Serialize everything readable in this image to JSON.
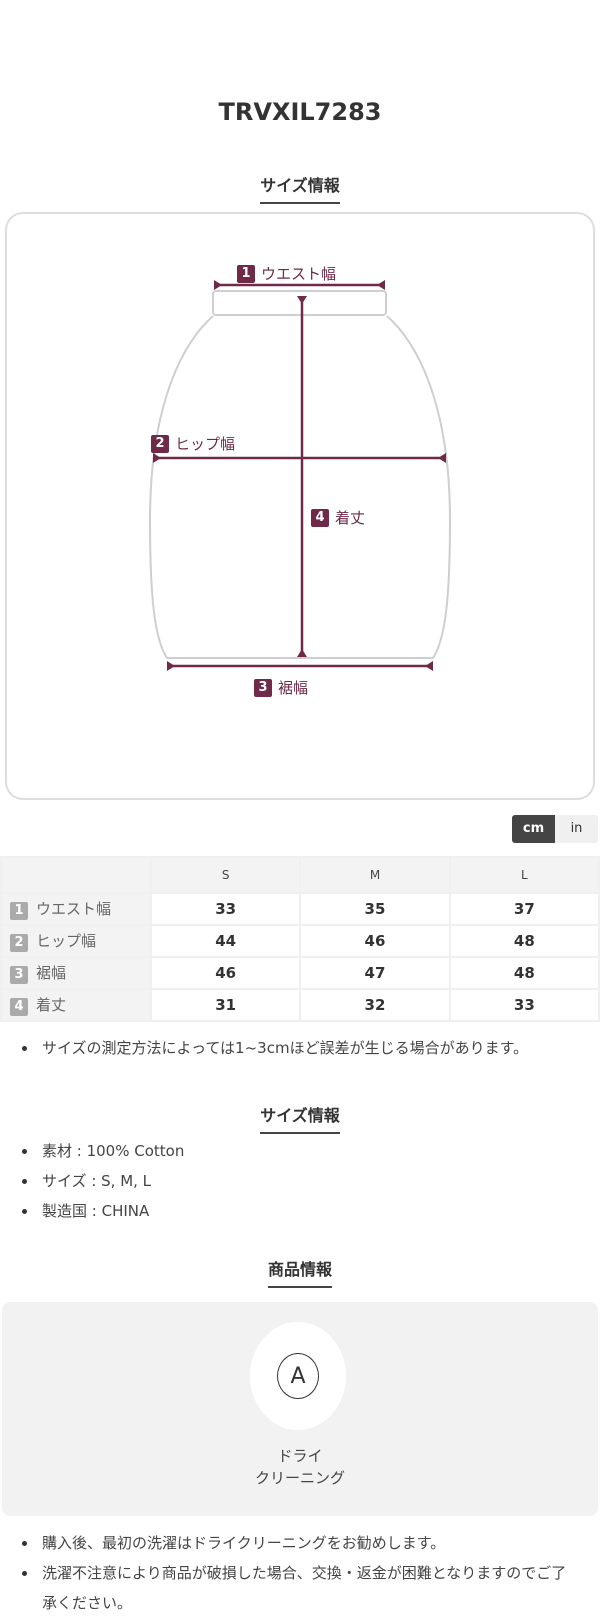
{
  "product_code": "TRVXIL7283",
  "size_section": {
    "heading": "サイズ情報",
    "diagram": {
      "accent_color": "#6e2a48",
      "labels": [
        {
          "num": "1",
          "text": "ウエスト幅"
        },
        {
          "num": "2",
          "text": "ヒップ幅"
        },
        {
          "num": "3",
          "text": "裾幅"
        },
        {
          "num": "4",
          "text": "着丈"
        }
      ]
    },
    "unit_toggle": {
      "options": [
        "cm",
        "in"
      ],
      "selected": "cm"
    },
    "table": {
      "columns": [
        "S",
        "M",
        "L"
      ],
      "rows": [
        {
          "num": "1",
          "label": "ウエスト幅",
          "values": [
            "33",
            "35",
            "37"
          ]
        },
        {
          "num": "2",
          "label": "ヒップ幅",
          "values": [
            "44",
            "46",
            "48"
          ]
        },
        {
          "num": "3",
          "label": "裾幅",
          "values": [
            "46",
            "47",
            "48"
          ]
        },
        {
          "num": "4",
          "label": "着丈",
          "values": [
            "31",
            "32",
            "33"
          ]
        }
      ]
    },
    "note": "サイズの測定方法によっては1~3cmほど誤差が生じる場合があります。"
  },
  "spec_section": {
    "heading": "サイズ情報",
    "items": [
      "素材 : 100% Cotton",
      "サイズ : S, M, L",
      "製造国 : CHINA"
    ]
  },
  "product_section": {
    "heading": "商品情報",
    "care": {
      "icon": "dry-clean-A-icon",
      "symbol": "A",
      "label_line1": "ドライ",
      "label_line2": "クリーニング"
    },
    "notes": [
      "購入後、最初の洗濯はドライクリーニングをお勧めします。",
      "洗濯不注意により商品が破損した場合、交換・返金が困難となりますのでご了承ください。"
    ]
  }
}
